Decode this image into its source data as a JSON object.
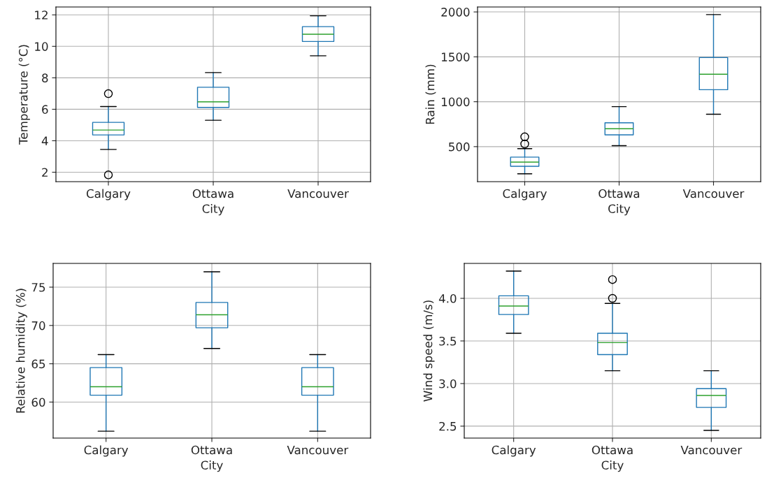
{
  "chart_data": [
    {
      "type": "box",
      "categories": [
        "Calgary",
        "Ottawa",
        "Vancouver"
      ],
      "xlabel": "City",
      "ylabel": "Temperature (°C)",
      "ylim": [
        1.4,
        12.5
      ],
      "yticks": [
        2,
        4,
        6,
        8,
        10,
        12
      ],
      "grid": true,
      "boxes": [
        {
          "low": 3.45,
          "q1": 4.37,
          "median": 4.68,
          "q3": 5.17,
          "high": 6.17,
          "outliers": [
            6.99,
            1.83
          ]
        },
        {
          "low": 5.3,
          "q1": 6.12,
          "median": 6.47,
          "q3": 7.4,
          "high": 8.33
        },
        {
          "low": 9.4,
          "q1": 10.31,
          "median": 10.77,
          "q3": 11.25,
          "high": 11.94
        }
      ]
    },
    {
      "type": "box",
      "categories": [
        "Calgary",
        "Ottawa",
        "Vancouver"
      ],
      "xlabel": "City",
      "ylabel": "Rain (mm)",
      "ylim": [
        110,
        2055
      ],
      "yticks": [
        500,
        1000,
        1500,
        2000
      ],
      "grid": true,
      "boxes": [
        {
          "low": 197,
          "q1": 281,
          "median": 328,
          "q3": 383,
          "high": 478,
          "outliers": [
            609,
            530
          ]
        },
        {
          "low": 511,
          "q1": 631,
          "median": 699,
          "q3": 765,
          "high": 945
        },
        {
          "low": 861,
          "q1": 1134,
          "median": 1306,
          "q3": 1492,
          "high": 1970
        }
      ]
    },
    {
      "type": "box",
      "categories": [
        "Calgary",
        "Ottawa",
        "Vancouver"
      ],
      "xlabel": "City",
      "ylabel": "Relative humidity (%)",
      "ylim": [
        55.3,
        78.1
      ],
      "yticks": [
        60,
        65,
        70,
        75
      ],
      "grid": true,
      "boxes": [
        {
          "low": 56.2,
          "q1": 60.9,
          "median": 62.0,
          "q3": 64.5,
          "high": 66.2
        },
        {
          "low": 67.0,
          "q1": 69.7,
          "median": 71.4,
          "q3": 73.0,
          "high": 77.0
        },
        {
          "low": 56.2,
          "q1": 60.9,
          "median": 62.0,
          "q3": 64.5,
          "high": 66.2
        }
      ]
    },
    {
      "type": "box",
      "categories": [
        "Calgary",
        "Ottawa",
        "Vancouver"
      ],
      "xlabel": "City",
      "ylabel": "Wind speed (m/s)",
      "ylim": [
        2.36,
        4.41
      ],
      "yticks": [
        2.5,
        {
          "value": 3,
          "label": "3.0"
        },
        3.5,
        {
          "value": 4,
          "label": "4.0"
        }
      ],
      "grid": true,
      "boxes": [
        {
          "low": 3.59,
          "q1": 3.81,
          "median": 3.91,
          "q3": 4.03,
          "high": 4.32
        },
        {
          "low": 3.15,
          "q1": 3.34,
          "median": 3.48,
          "q3": 3.59,
          "high": 3.94,
          "outliers": [
            4.22,
            4.0
          ]
        },
        {
          "low": 2.45,
          "q1": 2.72,
          "median": 2.86,
          "q3": 2.94,
          "high": 3.15
        }
      ]
    }
  ]
}
